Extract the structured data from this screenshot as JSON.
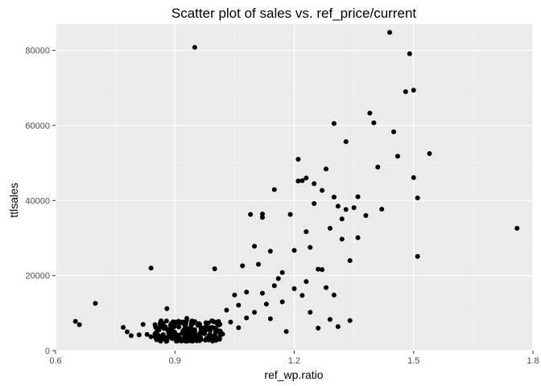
{
  "chart_data": {
    "type": "scatter",
    "title": "Scatter plot of sales vs. ref_price/current",
    "xlabel": "ref_wp.ratio",
    "ylabel": "ttlsales",
    "xlim": [
      0.6,
      1.8
    ],
    "ylim": [
      0,
      87000
    ],
    "x_ticks": [
      0.6,
      0.9,
      1.2,
      1.5,
      1.8
    ],
    "x_tick_labels": [
      "0.6",
      "0.9",
      "1.2",
      "1.5",
      "1.8"
    ],
    "y_ticks": [
      0,
      20000,
      40000,
      60000,
      80000
    ],
    "y_tick_labels": [
      "0",
      "20000",
      "40000",
      "60000",
      "80000"
    ],
    "grid": true,
    "point_color": "#000000",
    "panel_color": "#ebebeb",
    "points": [
      [
        0.65,
        7800
      ],
      [
        0.66,
        6900
      ],
      [
        0.7,
        12600
      ],
      [
        0.77,
        6200
      ],
      [
        0.78,
        5000
      ],
      [
        0.79,
        4000
      ],
      [
        0.81,
        4200
      ],
      [
        0.82,
        7000
      ],
      [
        0.83,
        4300
      ],
      [
        0.84,
        3700
      ],
      [
        0.84,
        22000
      ],
      [
        0.85,
        6900
      ],
      [
        0.86,
        5500
      ],
      [
        0.87,
        4200
      ],
      [
        0.88,
        3500
      ],
      [
        0.88,
        11200
      ],
      [
        0.89,
        6000
      ],
      [
        0.9,
        4800
      ],
      [
        0.91,
        3200
      ],
      [
        0.91,
        6300
      ],
      [
        0.92,
        5200
      ],
      [
        0.92,
        7600
      ],
      [
        0.93,
        4200
      ],
      [
        0.93,
        8600
      ],
      [
        0.94,
        3900
      ],
      [
        0.94,
        6100
      ],
      [
        0.95,
        80800
      ],
      [
        0.95,
        5000
      ],
      [
        0.96,
        3500
      ],
      [
        0.96,
        7200
      ],
      [
        0.97,
        4600
      ],
      [
        0.98,
        3300
      ],
      [
        0.98,
        6500
      ],
      [
        0.99,
        4100
      ],
      [
        0.99,
        5800
      ],
      [
        1.0,
        21800
      ],
      [
        1.0,
        3800
      ],
      [
        1.01,
        6800
      ],
      [
        1.02,
        4400
      ],
      [
        1.03,
        10800
      ],
      [
        1.04,
        7600
      ],
      [
        1.05,
        14800
      ],
      [
        1.06,
        12100
      ],
      [
        1.06,
        6100
      ],
      [
        1.07,
        22600
      ],
      [
        1.08,
        15600
      ],
      [
        1.08,
        8700
      ],
      [
        1.09,
        36300
      ],
      [
        1.1,
        27800
      ],
      [
        1.1,
        10200
      ],
      [
        1.11,
        23000
      ],
      [
        1.12,
        36400
      ],
      [
        1.12,
        35500
      ],
      [
        1.12,
        15300
      ],
      [
        1.13,
        12400
      ],
      [
        1.14,
        8500
      ],
      [
        1.14,
        26500
      ],
      [
        1.15,
        42900
      ],
      [
        1.15,
        17300
      ],
      [
        1.16,
        19200
      ],
      [
        1.17,
        20800
      ],
      [
        1.17,
        13000
      ],
      [
        1.18,
        5100
      ],
      [
        1.19,
        36300
      ],
      [
        1.2,
        26700
      ],
      [
        1.2,
        16500
      ],
      [
        1.21,
        45200
      ],
      [
        1.21,
        51000
      ],
      [
        1.22,
        45300
      ],
      [
        1.22,
        14700
      ],
      [
        1.23,
        46000
      ],
      [
        1.23,
        31700
      ],
      [
        1.23,
        18400
      ],
      [
        1.24,
        27500
      ],
      [
        1.24,
        10200
      ],
      [
        1.25,
        44500
      ],
      [
        1.25,
        39200
      ],
      [
        1.26,
        21700
      ],
      [
        1.26,
        6000
      ],
      [
        1.27,
        42700
      ],
      [
        1.27,
        21600
      ],
      [
        1.28,
        48400
      ],
      [
        1.28,
        16800
      ],
      [
        1.29,
        32600
      ],
      [
        1.29,
        8300
      ],
      [
        1.3,
        60500
      ],
      [
        1.3,
        40900
      ],
      [
        1.3,
        14800
      ],
      [
        1.31,
        38500
      ],
      [
        1.31,
        6400
      ],
      [
        1.32,
        29700
      ],
      [
        1.32,
        35100
      ],
      [
        1.33,
        37600
      ],
      [
        1.33,
        55700
      ],
      [
        1.34,
        24000
      ],
      [
        1.34,
        8000
      ],
      [
        1.35,
        38100
      ],
      [
        1.36,
        30100
      ],
      [
        1.36,
        41000
      ],
      [
        1.38,
        36000
      ],
      [
        1.39,
        63300
      ],
      [
        1.4,
        60700
      ],
      [
        1.41,
        48900
      ],
      [
        1.42,
        37700
      ],
      [
        1.45,
        58300
      ],
      [
        1.46,
        51800
      ],
      [
        1.48,
        69000
      ],
      [
        1.49,
        79100
      ],
      [
        1.5,
        69400
      ],
      [
        1.5,
        46100
      ],
      [
        1.51,
        40700
      ],
      [
        1.51,
        25100
      ],
      [
        1.54,
        52500
      ],
      [
        1.44,
        84800
      ],
      [
        1.76,
        32600
      ]
    ],
    "cluster": {
      "description_only_for_generation": false,
      "x_range": [
        0.85,
        1.02
      ],
      "y_range": [
        2500,
        8000
      ],
      "count": 180
    }
  }
}
